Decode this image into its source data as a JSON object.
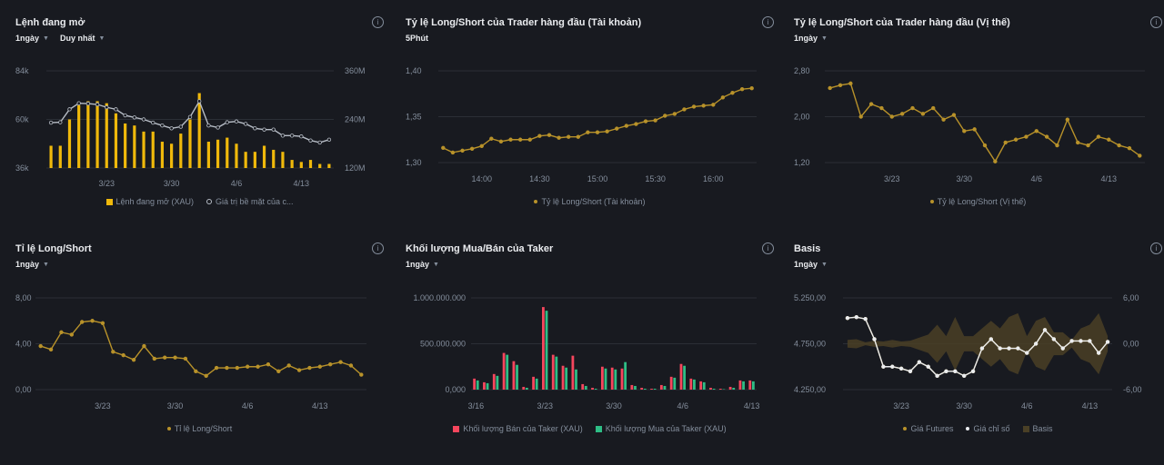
{
  "colors": {
    "gold": "#f0b90b",
    "olive": "#b8922a",
    "grey": "#b7bdc6",
    "red": "#f6465d",
    "green": "#2ebd85",
    "white": "#eaecef",
    "band": "#4a4026",
    "grid": "#2b2f36",
    "axis": "#848e9c"
  },
  "icons": {
    "info": "info-icon",
    "caret": "caret-down-icon"
  },
  "panels": [
    {
      "title": "Lệnh đang mở",
      "info": "i",
      "controls": [
        {
          "label": "1ngày"
        },
        {
          "label": "Duy nhất"
        }
      ],
      "legend": [
        {
          "label": "Lệnh đang mở (XAU)",
          "color": "#f0b90b",
          "kind": "bar"
        },
        {
          "label": "Giá trị bề mặt của c...",
          "color": "#b7bdc6",
          "kind": "dotline"
        }
      ],
      "chart_data": {
        "type": "bar+line",
        "y_ticks": [
          "84k",
          "60k",
          "36k"
        ],
        "y_range": [
          36000,
          84000
        ],
        "y2_ticks": [
          "360M",
          "240M",
          "120M"
        ],
        "y2_range": [
          120000000,
          360000000
        ],
        "x_ticks": [
          {
            "i": 6,
            "label": "3/23"
          },
          {
            "i": 13,
            "label": "3/30"
          },
          {
            "i": 20,
            "label": "4/6"
          },
          {
            "i": 27,
            "label": "4/13"
          }
        ],
        "bars": [
          47000,
          47000,
          60000,
          67000,
          69000,
          69000,
          68000,
          63000,
          58000,
          57000,
          54000,
          54000,
          49000,
          48000,
          53000,
          60000,
          73000,
          49000,
          50000,
          51000,
          48000,
          44000,
          44000,
          47000,
          45000,
          44000,
          40000,
          39000,
          40000,
          38000,
          38000
        ],
        "series": [
          {
            "name": "Giá trị bề mặt của c...",
            "values": [
              232,
              233,
              265,
              280,
              279,
              277,
              270,
              265,
              250,
              245,
              240,
              232,
              225,
              218,
              222,
              246,
              285,
              225,
              220,
              233,
              235,
              229,
              218,
              215,
              215,
              200,
              200,
              198,
              188,
              183,
              190
            ]
          }
        ]
      }
    },
    {
      "title": "Tỷ lệ Long/Short của Trader hàng đầu (Tài khoản)",
      "info": "i",
      "controls": [
        {
          "label": "5Phút"
        }
      ],
      "legend": [
        {
          "label": "Tỷ lệ Long/Short (Tài khoản)",
          "color": "#b8922a",
          "kind": "dotline"
        }
      ],
      "chart_data": {
        "type": "line",
        "y_ticks": [
          "1,40",
          "1,35",
          "1,30"
        ],
        "y_range": [
          1.3,
          1.4
        ],
        "x_ticks": [
          {
            "i": 4,
            "label": "14:00"
          },
          {
            "i": 10,
            "label": "14:30"
          },
          {
            "i": 16,
            "label": "15:00"
          },
          {
            "i": 22,
            "label": "15:30"
          },
          {
            "i": 28,
            "label": "16:00"
          }
        ],
        "series": [
          {
            "name": "Tỷ lệ Long/Short (Tài khoản)",
            "values": [
              1.316,
              1.311,
              1.313,
              1.315,
              1.318,
              1.326,
              1.323,
              1.325,
              1.325,
              1.325,
              1.329,
              1.33,
              1.327,
              1.328,
              1.328,
              1.333,
              1.333,
              1.334,
              1.337,
              1.34,
              1.342,
              1.345,
              1.346,
              1.351,
              1.353,
              1.358,
              1.361,
              1.362,
              1.363,
              1.371,
              1.376,
              1.38,
              1.381
            ]
          }
        ]
      }
    },
    {
      "title": "Tỷ lệ Long/Short của Trader hàng đầu (Vị thế)",
      "info": "i",
      "controls": [
        {
          "label": "1ngày"
        }
      ],
      "legend": [
        {
          "label": "Tỷ lệ Long/Short (Vị thế)",
          "color": "#b8922a",
          "kind": "dotline"
        }
      ],
      "chart_data": {
        "type": "line",
        "y_ticks": [
          "2,80",
          "2,00",
          "1,20"
        ],
        "y_range": [
          1.2,
          2.8
        ],
        "x_ticks": [
          {
            "i": 6,
            "label": "3/23"
          },
          {
            "i": 13,
            "label": "3/30"
          },
          {
            "i": 20,
            "label": "4/6"
          },
          {
            "i": 27,
            "label": "4/13"
          }
        ],
        "series": [
          {
            "name": "Tỷ lệ Long/Short (Vị thế)",
            "values": [
              2.5,
              2.55,
              2.58,
              2.0,
              2.22,
              2.15,
              2.0,
              2.05,
              2.15,
              2.05,
              2.15,
              1.95,
              2.03,
              1.75,
              1.78,
              1.5,
              1.22,
              1.55,
              1.6,
              1.65,
              1.75,
              1.65,
              1.5,
              1.95,
              1.55,
              1.5,
              1.65,
              1.6,
              1.5,
              1.45,
              1.32
            ]
          }
        ]
      }
    },
    {
      "title": "Tỉ lệ Long/Short",
      "info": "i",
      "controls": [
        {
          "label": "1ngày"
        }
      ],
      "legend": [
        {
          "label": "Tỉ lệ Long/Short",
          "color": "#b8922a",
          "kind": "dotline"
        }
      ],
      "chart_data": {
        "type": "line",
        "y_ticks": [
          "8,00",
          "4,00",
          "0,00"
        ],
        "y_range": [
          0,
          8
        ],
        "x_ticks": [
          {
            "i": 6,
            "label": "3/23"
          },
          {
            "i": 13,
            "label": "3/30"
          },
          {
            "i": 20,
            "label": "4/6"
          },
          {
            "i": 27,
            "label": "4/13"
          }
        ],
        "series": [
          {
            "name": "Tỉ lệ Long/Short",
            "values": [
              3.8,
              3.5,
              5.0,
              4.8,
              5.9,
              6.0,
              5.8,
              3.3,
              3.0,
              2.6,
              3.8,
              2.7,
              2.8,
              2.8,
              2.7,
              1.6,
              1.2,
              1.9,
              1.9,
              1.9,
              2.0,
              2.0,
              2.2,
              1.6,
              2.1,
              1.7,
              1.9,
              2.0,
              2.2,
              2.4,
              2.1,
              1.3
            ]
          }
        ]
      }
    },
    {
      "title": "Khối lượng Mua/Bán của Taker",
      "info": "i",
      "controls": [
        {
          "label": "1ngày"
        }
      ],
      "legend": [
        {
          "label": "Khối lượng Bán của Taker (XAU)",
          "color": "#f6465d",
          "kind": "bar"
        },
        {
          "label": "Khối lượng Mua của Taker (XAU)",
          "color": "#2ebd85",
          "kind": "bar"
        }
      ],
      "chart_data": {
        "type": "grouped-bar",
        "y_ticks": [
          "1.000.000.000",
          "500.000.000",
          "0,000"
        ],
        "y_range": [
          0,
          1000000000
        ],
        "x_ticks": [
          {
            "i": 0,
            "label": "3/16"
          },
          {
            "i": 7,
            "label": "3/23"
          },
          {
            "i": 14,
            "label": "3/30"
          },
          {
            "i": 21,
            "label": "4/6"
          },
          {
            "i": 28,
            "label": "4/13"
          }
        ],
        "series": [
          {
            "name": "Khối lượng Bán của Taker (XAU)",
            "values": [
              120000000,
              80000000,
              170000000,
              400000000,
              310000000,
              30000000,
              140000000,
              900000000,
              380000000,
              260000000,
              370000000,
              60000000,
              20000000,
              250000000,
              240000000,
              230000000,
              50000000,
              20000000,
              10000000,
              50000000,
              140000000,
              280000000,
              120000000,
              90000000,
              20000000,
              10000000,
              30000000,
              100000000,
              100000000
            ]
          },
          {
            "name": "Khối lượng Mua của Taker (XAU)",
            "values": [
              100000000,
              70000000,
              150000000,
              380000000,
              270000000,
              20000000,
              120000000,
              860000000,
              360000000,
              240000000,
              220000000,
              40000000,
              10000000,
              230000000,
              220000000,
              300000000,
              40000000,
              10000000,
              10000000,
              40000000,
              130000000,
              260000000,
              110000000,
              80000000,
              10000000,
              5000000,
              20000000,
              90000000,
              90000000
            ]
          }
        ]
      }
    },
    {
      "title": "Basis",
      "info": "i",
      "controls": [
        {
          "label": "1ngày"
        }
      ],
      "legend": [
        {
          "label": "Giá Futures",
          "color": "#b8922a",
          "kind": "dotline"
        },
        {
          "label": "Giá chỉ số",
          "color": "#eaecef",
          "kind": "dotline"
        },
        {
          "label": "Basis",
          "color": "#4a4026",
          "kind": "bar"
        }
      ],
      "chart_data": {
        "type": "line+area",
        "y_ticks": [
          "5.250,00",
          "4.750,00",
          "4.250,00"
        ],
        "y_range": [
          4250,
          5250
        ],
        "y2_ticks": [
          "6,00",
          "0,00",
          "-6,00"
        ],
        "y2_range": [
          -6,
          6
        ],
        "x_ticks": [
          {
            "i": 6,
            "label": "3/23"
          },
          {
            "i": 13,
            "label": "3/30"
          },
          {
            "i": 20,
            "label": "4/6"
          },
          {
            "i": 27,
            "label": "4/13"
          }
        ],
        "series": [
          {
            "name": "Giá Futures",
            "values": [
              5030,
              5040,
              5020,
              4800,
              4500,
              4500,
              4480,
              4450,
              4550,
              4500,
              4400,
              4450,
              4450,
              4400,
              4450,
              4700,
              4800,
              4700,
              4700,
              4700,
              4650,
              4750,
              4900,
              4800,
              4700,
              4780,
              4780,
              4780,
              4650,
              4770
            ]
          },
          {
            "name": "Giá chỉ số",
            "values": [
              5030,
              5040,
              5020,
              4800,
              4500,
              4500,
              4480,
              4450,
              4550,
              4500,
              4400,
              4450,
              4450,
              4400,
              4450,
              4700,
              4800,
              4700,
              4700,
              4700,
              4650,
              4750,
              4900,
              4800,
              4700,
              4780,
              4780,
              4780,
              4650,
              4770
            ]
          },
          {
            "name": "Basis",
            "values": [
              0.5,
              0.6,
              0.2,
              0.4,
              0.3,
              0.5,
              0.3,
              0.4,
              0.8,
              1.2,
              2.5,
              1.0,
              3.5,
              1.0,
              -1.0,
              -2.0,
              -3.0,
              2.0,
              -3.5,
              4.0,
              -1.0,
              -3.0,
              3.5,
              -1.5,
              1.5,
              0.5,
              -2.0,
              2.5,
              4.0,
              1.0
            ]
          }
        ]
      }
    }
  ]
}
